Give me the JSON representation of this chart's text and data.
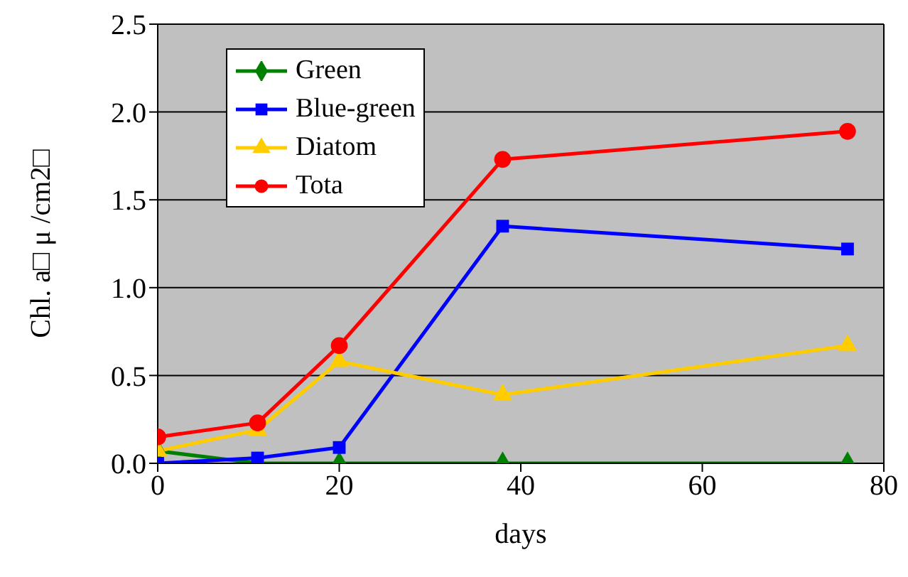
{
  "chart_data": {
    "type": "line",
    "xlabel": "days",
    "ylabel": "Chl. a□ μ /cm2□",
    "x": [
      0,
      11,
      20,
      38,
      76
    ],
    "series": [
      {
        "name": "Green",
        "color": "#008000",
        "marker": "diamond",
        "values": [
          0.07,
          0,
          0,
          0,
          0
        ]
      },
      {
        "name": "Blue-green",
        "color": "#0000ff",
        "marker": "square",
        "values": [
          0,
          0.03,
          0.09,
          1.35,
          1.22
        ]
      },
      {
        "name": "Diatom",
        "color": "#ffcc00",
        "marker": "triangle",
        "values": [
          0.07,
          0.19,
          0.58,
          0.39,
          0.67
        ]
      },
      {
        "name": "Tota",
        "color": "#ff0000",
        "marker": "circle",
        "values": [
          0.15,
          0.23,
          0.67,
          1.73,
          1.89
        ]
      }
    ],
    "xlim": [
      0,
      80
    ],
    "xticks": [
      0,
      20,
      40,
      60,
      80
    ],
    "ylim": [
      0,
      2.5
    ],
    "yticks": [
      {
        "value": 0,
        "label": "0.0"
      },
      {
        "value": 0.5,
        "label": "0.5"
      },
      {
        "value": 1,
        "label": "1.0"
      },
      {
        "value": 1.5,
        "label": "1.5"
      },
      {
        "value": 2,
        "label": "2.0"
      },
      {
        "value": 2.5,
        "label": "2.5"
      }
    ],
    "grid": "y",
    "legend": "top left",
    "line_style": "solid"
  }
}
